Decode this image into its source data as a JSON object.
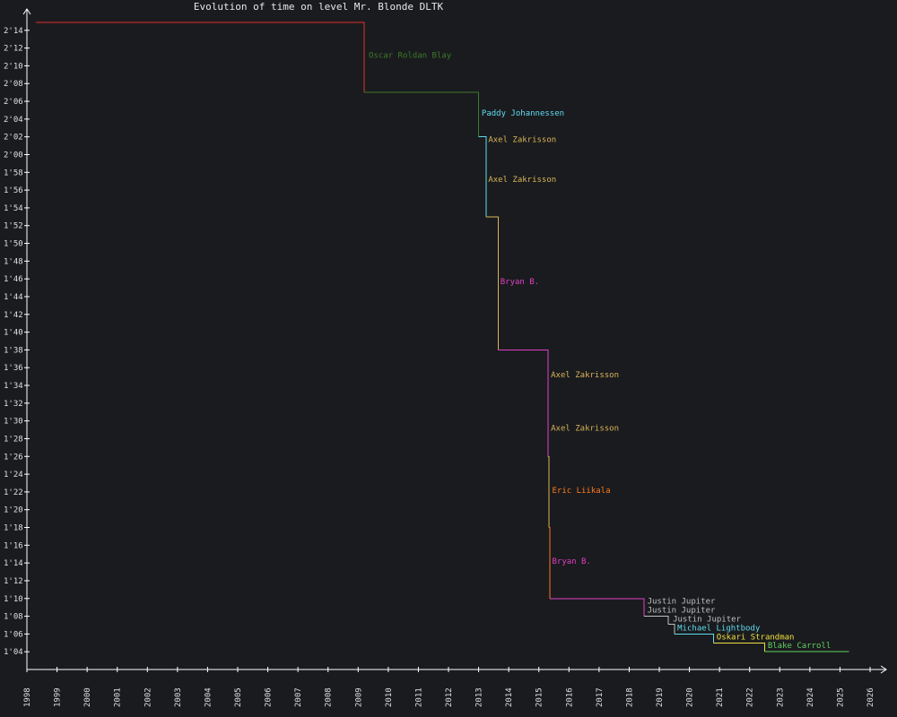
{
  "chart_data": {
    "type": "line",
    "title": "Evolution of time on level Mr. Blonde DLTK",
    "xlabel": "",
    "ylabel": "",
    "x_unit": "year",
    "y_unit": "seconds",
    "xlim": [
      1998,
      2026
    ],
    "ylim": [
      62,
      136
    ],
    "x_ticks": [
      "1998",
      "1999",
      "2000",
      "2001",
      "2002",
      "2003",
      "2004",
      "2005",
      "2006",
      "2007",
      "2008",
      "2009",
      "2010",
      "2011",
      "2012",
      "2013",
      "2014",
      "2015",
      "2016",
      "2017",
      "2018",
      "2019",
      "2020",
      "2021",
      "2022",
      "2023",
      "2024",
      "2025",
      "2026"
    ],
    "y_ticks": [
      {
        "v": 64,
        "label": "1'04"
      },
      {
        "v": 66,
        "label": "1'06"
      },
      {
        "v": 68,
        "label": "1'08"
      },
      {
        "v": 70,
        "label": "1'10"
      },
      {
        "v": 72,
        "label": "1'12"
      },
      {
        "v": 74,
        "label": "1'14"
      },
      {
        "v": 76,
        "label": "1'16"
      },
      {
        "v": 78,
        "label": "1'18"
      },
      {
        "v": 80,
        "label": "1'20"
      },
      {
        "v": 82,
        "label": "1'22"
      },
      {
        "v": 84,
        "label": "1'24"
      },
      {
        "v": 86,
        "label": "1'26"
      },
      {
        "v": 88,
        "label": "1'28"
      },
      {
        "v": 90,
        "label": "1'30"
      },
      {
        "v": 92,
        "label": "1'32"
      },
      {
        "v": 94,
        "label": "1'34"
      },
      {
        "v": 96,
        "label": "1'36"
      },
      {
        "v": 98,
        "label": "1'38"
      },
      {
        "v": 100,
        "label": "1'40"
      },
      {
        "v": 102,
        "label": "1'42"
      },
      {
        "v": 104,
        "label": "1'44"
      },
      {
        "v": 106,
        "label": "1'46"
      },
      {
        "v": 108,
        "label": "1'48"
      },
      {
        "v": 110,
        "label": "1'50"
      },
      {
        "v": 112,
        "label": "1'52"
      },
      {
        "v": 114,
        "label": "1'54"
      },
      {
        "v": 116,
        "label": "1'56"
      },
      {
        "v": 118,
        "label": "1'58"
      },
      {
        "v": 120,
        "label": "2'00"
      },
      {
        "v": 122,
        "label": "2'02"
      },
      {
        "v": 124,
        "label": "2'04"
      },
      {
        "v": 126,
        "label": "2'06"
      },
      {
        "v": 128,
        "label": "2'08"
      },
      {
        "v": 130,
        "label": "2'10"
      },
      {
        "v": 132,
        "label": "2'12"
      },
      {
        "v": 134,
        "label": "2'14"
      }
    ],
    "grid": false,
    "legend": "none",
    "background": "#1a1b1e",
    "axis_color": "#ffffff",
    "records": [
      {
        "player": "",
        "start": 1998.3,
        "time": 134.9,
        "color": "#e03030"
      },
      {
        "player": "Oscar Roldan Blay",
        "start": 2009.2,
        "time": 127.0,
        "color": "#3d7a2a"
      },
      {
        "player": "Paddy Johannessen",
        "start": 2013.0,
        "time": 122.0,
        "color": "#5fdcf0"
      },
      {
        "player": "Axel Zakrisson",
        "start": 2013.25,
        "time": 113.0,
        "color": "#d8b45a"
      },
      {
        "player": "Bryan B.",
        "start": 2013.65,
        "time": 98.0,
        "color": "#e040c8"
      },
      {
        "player": "Axel Zakrisson",
        "start": 2015.3,
        "time": 86.0,
        "color": "#d8b45a"
      },
      {
        "player": "Eric Liikala",
        "start": 2015.33,
        "time": 78.0,
        "color": "#ff7a20"
      },
      {
        "player": "Bryan B.",
        "start": 2015.36,
        "time": 70.0,
        "color": "#e040c8"
      },
      {
        "player": "Justin Jupiter",
        "start": 2018.5,
        "time": 68.0,
        "color": "#c0c0c0"
      },
      {
        "player": "Justin Jupiter",
        "start": 2019.3,
        "time": 67.1,
        "color": "#c0c0c0"
      },
      {
        "player": "Michael Lightbody",
        "start": 2019.5,
        "time": 66.0,
        "color": "#5fdcf0"
      },
      {
        "player": "Oskari Strandman",
        "start": 2020.8,
        "time": 65.0,
        "color": "#f0e040"
      },
      {
        "player": "Blake Carroll",
        "start": 2022.5,
        "time": 64.0,
        "color": "#60d060"
      }
    ],
    "end_x": 2025.3,
    "labels": [
      {
        "text": "Oscar Roldan Blay",
        "x": 2009.35,
        "y": 130.9,
        "color": "#3d7a2a"
      },
      {
        "text": "Paddy Johannessen",
        "x": 2013.1,
        "y": 124.4,
        "color": "#5fdcf0"
      },
      {
        "text": "Axel Zakrisson",
        "x": 2013.32,
        "y": 121.4,
        "color": "#d8b45a"
      },
      {
        "text": "Axel Zakrisson",
        "x": 2013.32,
        "y": 116.9,
        "color": "#d8b45a"
      },
      {
        "text": "Bryan B.",
        "x": 2013.72,
        "y": 105.4,
        "color": "#e040c8"
      },
      {
        "text": "Axel Zakrisson",
        "x": 2015.4,
        "y": 94.9,
        "color": "#d8b45a"
      },
      {
        "text": "Axel Zakrisson",
        "x": 2015.4,
        "y": 88.9,
        "color": "#d8b45a"
      },
      {
        "text": "Eric Liikala",
        "x": 2015.44,
        "y": 81.9,
        "color": "#ff7a20"
      },
      {
        "text": "Bryan B.",
        "x": 2015.44,
        "y": 73.9,
        "color": "#e040c8"
      },
      {
        "text": "Justin Jupiter",
        "x": 2018.6,
        "y": 69.4,
        "color": "#c0c0c0"
      },
      {
        "text": "Justin Jupiter",
        "x": 2018.6,
        "y": 68.4,
        "color": "#c0c0c0"
      },
      {
        "text": "Justin Jupiter",
        "x": 2019.45,
        "y": 67.4,
        "color": "#c0c0c0"
      },
      {
        "text": "Michael Lightbody",
        "x": 2019.6,
        "y": 66.4,
        "color": "#5fdcf0"
      },
      {
        "text": "Oskari Strandman",
        "x": 2020.9,
        "y": 65.4,
        "color": "#f0e040"
      },
      {
        "text": "Blake Carroll",
        "x": 2022.6,
        "y": 64.4,
        "color": "#60d060"
      }
    ]
  }
}
